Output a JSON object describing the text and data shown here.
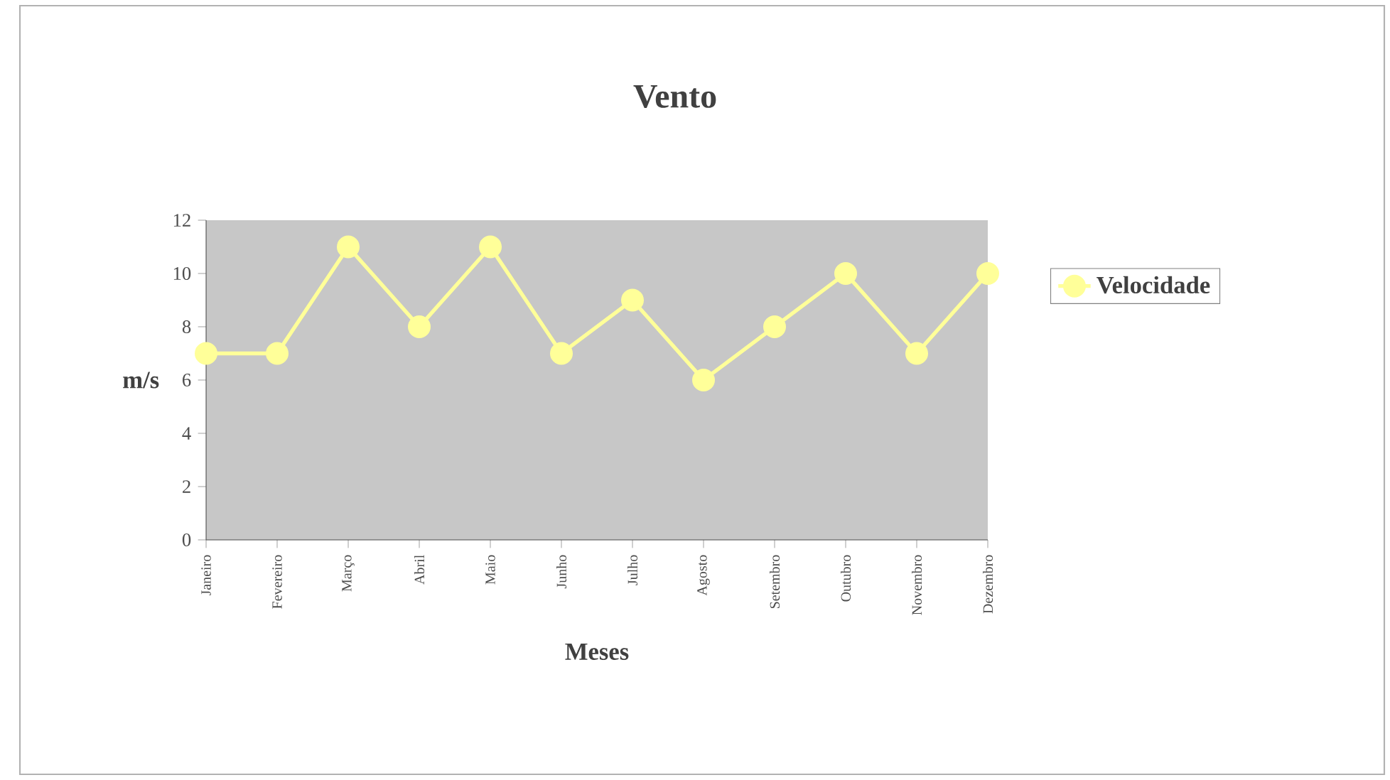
{
  "chart_data": {
    "type": "line",
    "title": "Vento",
    "xlabel": "Meses",
    "ylabel": "m/s",
    "categories": [
      "Janeiro",
      "Fevereiro",
      "Março",
      "Abril",
      "Maio",
      "Junho",
      "Julho",
      "Agosto",
      "Setembro",
      "Outubro",
      "Novembro",
      "Dezembro"
    ],
    "series": [
      {
        "name": "Velocidade",
        "color": "#ffff99",
        "values": [
          7,
          7,
          11,
          8,
          11,
          7,
          9,
          6,
          8,
          10,
          7,
          10
        ]
      }
    ],
    "ylim": [
      0,
      12
    ],
    "yticks": [
      0,
      2,
      4,
      6,
      8,
      10,
      12
    ],
    "marker": "circle",
    "line_style": "solid",
    "legend": "right",
    "grid": false
  }
}
